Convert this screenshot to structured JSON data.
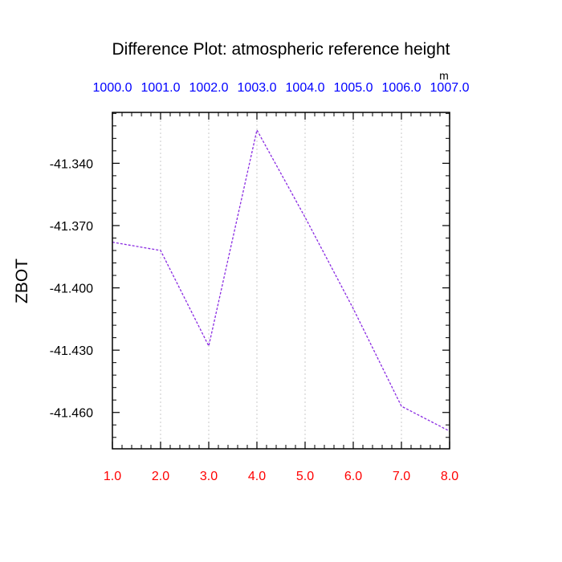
{
  "chart_data": {
    "type": "line",
    "title": "Difference Plot: atmospheric reference height",
    "ylabel": "ZBOT",
    "xlabel": "",
    "top_axis_unit": "m",
    "x": [
      1.0,
      2.0,
      3.0,
      4.0,
      5.0,
      6.0,
      7.0,
      8.0
    ],
    "series": [
      {
        "values": [
          -41.378,
          -41.382,
          -41.428,
          -41.324,
          -41.366,
          -41.41,
          -41.457,
          -41.469
        ]
      }
    ],
    "xlim": [
      1.0,
      8.0
    ],
    "ylim": [
      -41.4775,
      -41.3155
    ],
    "bottom_tick_labels": [
      "1.0",
      "2.0",
      "3.0",
      "4.0",
      "5.0",
      "6.0",
      "7.0",
      "8.0"
    ],
    "top_tick_labels": [
      "1000.0",
      "1001.0",
      "1002.0",
      "1003.0",
      "1004.0",
      "1005.0",
      "1006.0",
      "1007.0"
    ],
    "y_ticks": [
      -41.34,
      -41.37,
      -41.4,
      -41.43,
      -41.46
    ],
    "y_tick_labels": [
      "-41.340",
      "-41.370",
      "-41.400",
      "-41.430",
      "-41.460"
    ],
    "grid": "vertical dotted",
    "legend": "none",
    "colors": {
      "line": "#8a2be2",
      "bottom_ticks": "#ff0000",
      "top_ticks": "#0000ff",
      "axis": "#000000",
      "grid": "#c8c8c8"
    }
  }
}
